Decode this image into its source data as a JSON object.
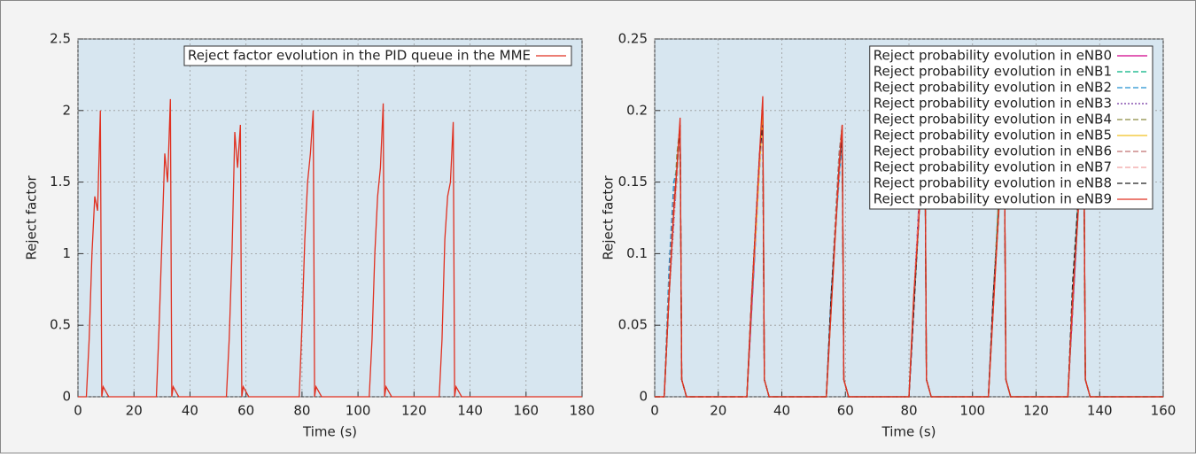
{
  "chart_data": [
    {
      "type": "line",
      "ylabel": "Reject factor",
      "xlabel": "Time (s)",
      "xlim": [
        0,
        180
      ],
      "ylim": [
        0,
        2.5
      ],
      "xticks": [
        0,
        20,
        40,
        60,
        80,
        100,
        120,
        140,
        160,
        180
      ],
      "yticks": [
        0,
        0.5,
        1,
        1.5,
        2,
        2.5
      ],
      "grid": true,
      "legend": "upper right",
      "x": [
        0,
        3,
        4,
        5,
        6,
        7,
        8,
        8.5,
        9,
        11,
        28,
        29,
        30,
        31,
        32,
        33,
        33.5,
        34,
        36,
        53,
        54,
        55,
        56,
        57,
        58,
        58.5,
        59,
        61,
        79,
        80,
        81,
        82,
        83,
        84,
        84.5,
        85,
        87,
        104,
        105,
        106,
        107,
        108,
        109,
        109.5,
        110,
        112,
        129,
        130,
        131,
        132,
        133,
        134,
        134.5,
        135,
        137,
        180
      ],
      "series": [
        {
          "name": "Reject factor evolution in the PID queue in the MME",
          "color": "#e03020",
          "dash": "solid",
          "values": [
            0,
            0,
            0.4,
            1.0,
            1.4,
            1.3,
            2.0,
            0,
            0.07,
            0,
            0,
            0.5,
            1.1,
            1.7,
            1.5,
            2.08,
            0,
            0.07,
            0,
            0,
            0.4,
            1.0,
            1.85,
            1.6,
            1.9,
            0,
            0.07,
            0,
            0,
            0.5,
            1.1,
            1.5,
            1.7,
            2.0,
            0,
            0.07,
            0,
            0,
            0.4,
            1.0,
            1.4,
            1.6,
            2.05,
            0,
            0.07,
            0,
            0,
            0.4,
            1.1,
            1.4,
            1.5,
            1.92,
            0,
            0.07,
            0,
            0
          ]
        }
      ]
    },
    {
      "type": "line",
      "ylabel": "Reject factor",
      "xlabel": "Time (s)",
      "xlim": [
        0,
        160
      ],
      "ylim": [
        0,
        0.25
      ],
      "xticks": [
        0,
        20,
        40,
        60,
        80,
        100,
        120,
        140,
        160
      ],
      "yticks": [
        0,
        0.05,
        0.1,
        0.15,
        0.2,
        0.25
      ],
      "grid": true,
      "legend": "upper right",
      "x": [
        0,
        3,
        4.5,
        6,
        7,
        8,
        8.5,
        10,
        29,
        30.5,
        32,
        33,
        34,
        34.5,
        36,
        54,
        55.5,
        57,
        58,
        59,
        59.5,
        61,
        80,
        81.5,
        83,
        84,
        85,
        85.5,
        87,
        105,
        106.5,
        108,
        109,
        110,
        110.5,
        112,
        130,
        131.5,
        133,
        134,
        135,
        135.5,
        137,
        160
      ],
      "series": [
        {
          "name": "Reject probability evolution in eNB0",
          "color": "#d0008a",
          "dash": "solid",
          "values": [
            0,
            0,
            0.07,
            0.13,
            0.16,
            0.19,
            0.012,
            0,
            0,
            0.06,
            0.12,
            0.17,
            0.2,
            0.012,
            0,
            0,
            0.07,
            0.12,
            0.16,
            0.19,
            0.012,
            0,
            0,
            0.06,
            0.13,
            0.17,
            0.2,
            0.012,
            0,
            0,
            0.07,
            0.12,
            0.16,
            0.19,
            0.012,
            0,
            0,
            0.06,
            0.12,
            0.16,
            0.19,
            0.012,
            0,
            0
          ]
        },
        {
          "name": "Reject probability evolution in eNB1",
          "color": "#00b080",
          "dash": "dashed",
          "values": [
            0,
            0,
            0.08,
            0.14,
            0.15,
            0.19,
            0.012,
            0,
            0,
            0.07,
            0.13,
            0.16,
            0.19,
            0.012,
            0,
            0,
            0.06,
            0.13,
            0.17,
            0.19,
            0.012,
            0,
            0,
            0.07,
            0.12,
            0.16,
            0.2,
            0.012,
            0,
            0,
            0.06,
            0.13,
            0.17,
            0.19,
            0.012,
            0,
            0,
            0.07,
            0.13,
            0.15,
            0.19,
            0.012,
            0,
            0
          ]
        },
        {
          "name": "Reject probability evolution in eNB2",
          "color": "#2090d0",
          "dash": "dashed",
          "values": [
            0,
            0,
            0.09,
            0.15,
            0.16,
            0.19,
            0.012,
            0,
            0,
            0.06,
            0.12,
            0.16,
            0.2,
            0.012,
            0,
            0,
            0.07,
            0.12,
            0.15,
            0.18,
            0.012,
            0,
            0,
            0.06,
            0.12,
            0.17,
            0.19,
            0.012,
            0,
            0,
            0.07,
            0.12,
            0.15,
            0.19,
            0.012,
            0,
            0,
            0.06,
            0.12,
            0.17,
            0.18,
            0.012,
            0,
            0
          ]
        },
        {
          "name": "Reject probability evolution in eNB3",
          "color": "#7030a0",
          "dash": "dotted",
          "values": [
            0,
            0,
            0.07,
            0.12,
            0.16,
            0.19,
            0.012,
            0,
            0,
            0.07,
            0.12,
            0.17,
            0.19,
            0.012,
            0,
            0,
            0.06,
            0.12,
            0.16,
            0.19,
            0.012,
            0,
            0,
            0.07,
            0.13,
            0.16,
            0.19,
            0.012,
            0,
            0,
            0.06,
            0.12,
            0.16,
            0.19,
            0.012,
            0,
            0,
            0.07,
            0.12,
            0.16,
            0.19,
            0.012,
            0,
            0
          ]
        },
        {
          "name": "Reject probability evolution in eNB4",
          "color": "#8a8a40",
          "dash": "dashed",
          "values": [
            0,
            0,
            0.08,
            0.13,
            0.17,
            0.19,
            0.012,
            0,
            0,
            0.06,
            0.13,
            0.16,
            0.19,
            0.012,
            0,
            0,
            0.07,
            0.13,
            0.16,
            0.19,
            0.012,
            0,
            0,
            0.06,
            0.12,
            0.16,
            0.19,
            0.012,
            0,
            0,
            0.07,
            0.13,
            0.17,
            0.19,
            0.012,
            0,
            0,
            0.06,
            0.13,
            0.16,
            0.18,
            0.012,
            0,
            0
          ]
        },
        {
          "name": "Reject probability evolution in eNB5",
          "color": "#f0c020",
          "dash": "solid",
          "values": [
            0,
            0,
            0.07,
            0.13,
            0.16,
            0.19,
            0.012,
            0,
            0,
            0.07,
            0.12,
            0.16,
            0.2,
            0.012,
            0,
            0,
            0.06,
            0.12,
            0.16,
            0.19,
            0.012,
            0,
            0,
            0.07,
            0.12,
            0.17,
            0.2,
            0.012,
            0,
            0,
            0.06,
            0.12,
            0.16,
            0.19,
            0.012,
            0,
            0,
            0.07,
            0.12,
            0.16,
            0.19,
            0.012,
            0,
            0
          ]
        },
        {
          "name": "Reject probability evolution in eNB6",
          "color": "#c07070",
          "dash": "dashed",
          "values": [
            0,
            0,
            0.08,
            0.14,
            0.16,
            0.19,
            0.012,
            0,
            0,
            0.06,
            0.13,
            0.17,
            0.19,
            0.012,
            0,
            0,
            0.07,
            0.13,
            0.17,
            0.19,
            0.012,
            0,
            0,
            0.06,
            0.13,
            0.16,
            0.19,
            0.012,
            0,
            0,
            0.07,
            0.12,
            0.17,
            0.19,
            0.012,
            0,
            0,
            0.06,
            0.13,
            0.16,
            0.19,
            0.012,
            0,
            0
          ]
        },
        {
          "name": "Reject probability evolution in eNB7",
          "color": "#f0a0a0",
          "dash": "dashed",
          "values": [
            0,
            0,
            0.07,
            0.12,
            0.15,
            0.19,
            0.012,
            0,
            0,
            0.07,
            0.12,
            0.16,
            0.19,
            0.012,
            0,
            0,
            0.06,
            0.12,
            0.15,
            0.19,
            0.012,
            0,
            0,
            0.07,
            0.13,
            0.16,
            0.19,
            0.012,
            0,
            0,
            0.06,
            0.12,
            0.15,
            0.19,
            0.012,
            0,
            0,
            0.07,
            0.12,
            0.15,
            0.19,
            0.012,
            0,
            0
          ]
        },
        {
          "name": "Reject probability evolution in eNB8",
          "color": "#202020",
          "dash": "dashed",
          "values": [
            0,
            0,
            0.07,
            0.13,
            0.16,
            0.19,
            0.012,
            0,
            0,
            0.07,
            0.13,
            0.17,
            0.19,
            0.012,
            0,
            0,
            0.07,
            0.12,
            0.16,
            0.18,
            0.012,
            0,
            0,
            0.06,
            0.12,
            0.16,
            0.19,
            0.012,
            0,
            0,
            0.07,
            0.12,
            0.16,
            0.18,
            0.012,
            0,
            0,
            0.08,
            0.13,
            0.16,
            0.18,
            0.012,
            0,
            0
          ]
        },
        {
          "name": "Reject probability evolution in eNB9",
          "color": "#e03020",
          "dash": "solid",
          "values": [
            0,
            0,
            0.07,
            0.13,
            0.16,
            0.195,
            0.012,
            0,
            0,
            0.07,
            0.13,
            0.17,
            0.21,
            0.012,
            0,
            0,
            0.06,
            0.12,
            0.16,
            0.19,
            0.012,
            0,
            0,
            0.07,
            0.12,
            0.16,
            0.2,
            0.012,
            0,
            0,
            0.06,
            0.12,
            0.16,
            0.19,
            0.012,
            0,
            0,
            0.07,
            0.12,
            0.16,
            0.19,
            0.012,
            0,
            0
          ]
        }
      ]
    }
  ]
}
